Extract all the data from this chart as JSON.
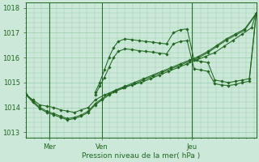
{
  "title": "",
  "xlabel": "Pression niveau de la mer( hPa )",
  "bg_color": "#cce8d8",
  "grid_color": "#99ccaa",
  "line_color": "#226622",
  "text_color": "#226622",
  "ylim": [
    1012.8,
    1018.2
  ],
  "yticks": [
    1013,
    1014,
    1015,
    1016,
    1017,
    1018
  ],
  "ytick_labels": [
    "1013",
    "1014",
    "1015",
    "1016",
    "1017",
    "1018"
  ],
  "xlim": [
    0,
    1.0
  ],
  "xtick_positions": [
    0.1,
    0.33,
    0.72
  ],
  "xtick_labels": [
    "Mer",
    "Ven",
    "Jeu"
  ],
  "vline_positions": [
    0.1,
    0.33,
    0.72
  ],
  "series": [
    {
      "x": [
        0.0,
        0.03,
        0.06,
        0.09,
        0.12,
        0.15,
        0.18,
        0.21,
        0.24,
        0.27,
        0.3,
        0.34,
        0.38,
        0.42,
        0.46,
        0.5,
        0.54,
        0.58,
        0.62,
        0.66,
        0.7,
        0.74,
        0.78,
        0.82,
        0.86,
        0.9,
        0.94,
        0.98,
        1.0
      ],
      "y": [
        1014.5,
        1014.3,
        1014.1,
        1014.05,
        1014.0,
        1013.9,
        1013.85,
        1013.8,
        1013.9,
        1014.0,
        1014.3,
        1014.5,
        1014.65,
        1014.8,
        1014.9,
        1015.0,
        1015.15,
        1015.3,
        1015.45,
        1015.6,
        1015.75,
        1015.9,
        1016.05,
        1016.2,
        1016.45,
        1016.7,
        1016.95,
        1017.2,
        1017.8
      ]
    },
    {
      "x": [
        0.0,
        0.03,
        0.06,
        0.09,
        0.12,
        0.15,
        0.18,
        0.21,
        0.24,
        0.27,
        0.3,
        0.33,
        0.36,
        0.39,
        0.43,
        0.47,
        0.51,
        0.55,
        0.59,
        0.63,
        0.67,
        0.71,
        0.75,
        0.79,
        0.83,
        0.87,
        0.91,
        0.95,
        1.0
      ],
      "y": [
        1014.5,
        1014.2,
        1013.95,
        1013.8,
        1013.7,
        1013.6,
        1013.5,
        1013.55,
        1013.65,
        1013.8,
        1014.1,
        1014.3,
        1014.5,
        1014.65,
        1014.8,
        1014.95,
        1015.1,
        1015.25,
        1015.4,
        1015.55,
        1015.7,
        1015.85,
        1016.0,
        1016.2,
        1016.45,
        1016.7,
        1016.9,
        1017.1,
        1017.75
      ]
    },
    {
      "x": [
        0.0,
        0.03,
        0.06,
        0.09,
        0.12,
        0.15,
        0.18,
        0.21,
        0.24,
        0.27,
        0.3,
        0.33,
        0.36,
        0.39,
        0.43,
        0.47,
        0.51,
        0.55,
        0.59,
        0.63,
        0.67,
        0.71,
        0.75,
        0.79,
        0.83,
        0.87,
        0.91,
        0.95,
        1.0
      ],
      "y": [
        1014.55,
        1014.25,
        1014.0,
        1013.85,
        1013.75,
        1013.65,
        1013.55,
        1013.6,
        1013.7,
        1013.85,
        1014.15,
        1014.35,
        1014.55,
        1014.7,
        1014.85,
        1015.0,
        1015.15,
        1015.3,
        1015.45,
        1015.6,
        1015.75,
        1015.9,
        1016.05,
        1016.25,
        1016.5,
        1016.75,
        1016.95,
        1017.15,
        1017.78
      ]
    },
    {
      "x": [
        0.3,
        0.32,
        0.34,
        0.36,
        0.38,
        0.4,
        0.43,
        0.46,
        0.49,
        0.52,
        0.55,
        0.58,
        0.61,
        0.64,
        0.67,
        0.7,
        0.73,
        0.76,
        0.79,
        0.82,
        0.85,
        0.88,
        0.91,
        0.94,
        0.97,
        1.0
      ],
      "y": [
        1014.6,
        1015.0,
        1015.5,
        1016.0,
        1016.4,
        1016.65,
        1016.75,
        1016.72,
        1016.68,
        1016.65,
        1016.62,
        1016.58,
        1016.55,
        1017.0,
        1017.12,
        1017.15,
        1015.9,
        1015.85,
        1015.8,
        1015.1,
        1015.05,
        1015.0,
        1015.05,
        1015.1,
        1015.15,
        1017.8
      ]
    },
    {
      "x": [
        0.3,
        0.32,
        0.34,
        0.36,
        0.38,
        0.4,
        0.43,
        0.46,
        0.49,
        0.52,
        0.55,
        0.58,
        0.61,
        0.64,
        0.67,
        0.7,
        0.73,
        0.76,
        0.79,
        0.82,
        0.85,
        0.88,
        0.91,
        0.94,
        0.97,
        1.0
      ],
      "y": [
        1014.5,
        1014.85,
        1015.2,
        1015.6,
        1016.0,
        1016.25,
        1016.35,
        1016.32,
        1016.28,
        1016.25,
        1016.22,
        1016.18,
        1016.15,
        1016.55,
        1016.65,
        1016.68,
        1015.55,
        1015.5,
        1015.45,
        1014.95,
        1014.9,
        1014.88,
        1014.92,
        1015.0,
        1015.05,
        1017.75
      ]
    }
  ]
}
